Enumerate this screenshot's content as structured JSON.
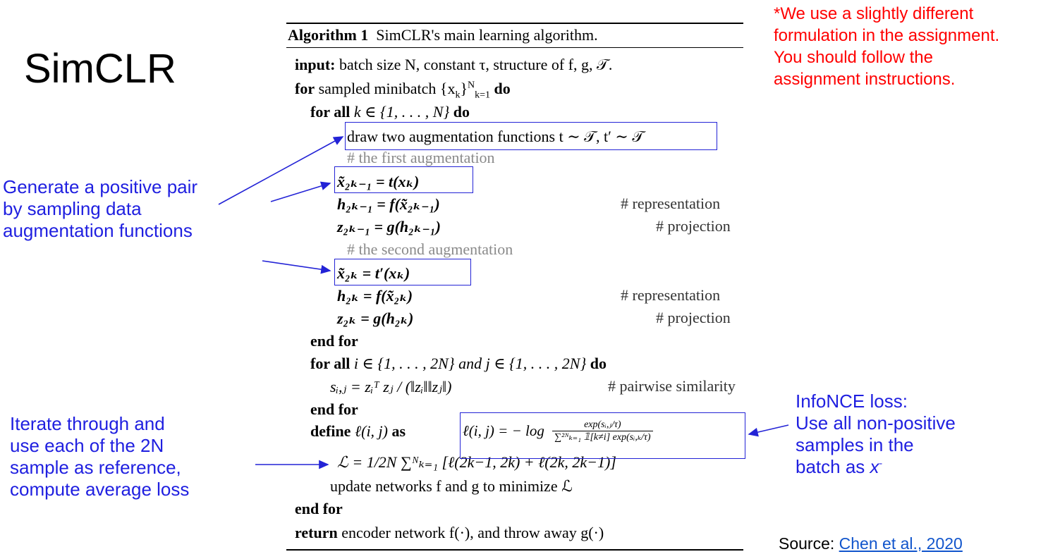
{
  "slide": {
    "title": "SimCLR"
  },
  "note": {
    "lines": [
      "*We use a slightly different",
      "formulation in the assignment.",
      "You should follow the",
      "assignment instructions."
    ]
  },
  "annotations": {
    "positive_pair": [
      "Generate a positive pair",
      "by sampling data",
      "augmentation functions"
    ],
    "iterate": [
      "Iterate through and",
      "use each of the 2N",
      "sample as reference,",
      "compute average loss"
    ],
    "infonce": [
      "InfoNCE loss:",
      "Use all non-positive",
      "samples in the",
      "batch as "
    ],
    "infonce_x": "x",
    "infonce_sup": "-"
  },
  "algorithm": {
    "header_label": "Algorithm 1",
    "header_title": "SimCLR's main learning algorithm.",
    "l1_kw": "input:",
    "l1_text": "batch size N, constant τ, structure of f, g, 𝒯.",
    "l2_kw": "for",
    "l2_text": "sampled minibatch {x",
    "l2_sub": "k",
    "l2_sup": "N",
    "l2_sub2": "k=1",
    "l2_do": "do",
    "l3_kw": "for all",
    "l3_text": "k ∈ {1, . . . , N}",
    "l3_do": "do",
    "l4_text": "draw two augmentation functions t ∼ 𝒯, t′ ∼ 𝒯",
    "c1": "# the first augmentation",
    "e1": "x̃₂ₖ₋₁ = t(xₖ)",
    "e2": "h₂ₖ₋₁ = f(x̃₂ₖ₋₁)",
    "e2c": "# representation",
    "e3": "z₂ₖ₋₁ = g(h₂ₖ₋₁)",
    "e3c": "# projection",
    "c2": "# the second augmentation",
    "e4": "x̃₂ₖ = t′(xₖ)",
    "e5": "h₂ₖ = f(x̃₂ₖ)",
    "e5c": "# representation",
    "e6": "z₂ₖ = g(h₂ₖ)",
    "e6c": "# projection",
    "end1": "end for",
    "l5_kw": "for all",
    "l5_text": "i ∈ {1, . . . , 2N} and j ∈ {1, . . . , 2N}",
    "l5_do": "do",
    "sim": "sᵢ,ⱼ = zᵢᵀ zⱼ / (‖zᵢ‖‖zⱼ‖)",
    "simc": "# pairwise similarity",
    "end2": "end for",
    "def_kw": "define",
    "def_text": "ℓ(i, j)",
    "def_as": "as",
    "loss_lhs": "ℓ(i, j) = − log",
    "loss_num": "exp(sᵢ,ⱼ/τ)",
    "loss_den": "∑²ᴺₖ₌₁ 𝟙[k≠i] exp(sᵢ,ₖ/τ)",
    "avg": "ℒ = 1/2N ∑ᴺₖ₌₁ [ℓ(2k−1, 2k) + ℓ(2k, 2k−1)]",
    "update": "update networks f and g to minimize ℒ",
    "end3": "end for",
    "ret_kw": "return",
    "ret_text": "encoder network f(·), and throw away g(·)"
  },
  "source": {
    "prefix": "Source: ",
    "link": "Chen et al., 2020"
  },
  "colors": {
    "annotation_blue": "#1f1fe0",
    "note_red": "#ff0000",
    "box_blue": "#2323d6"
  }
}
